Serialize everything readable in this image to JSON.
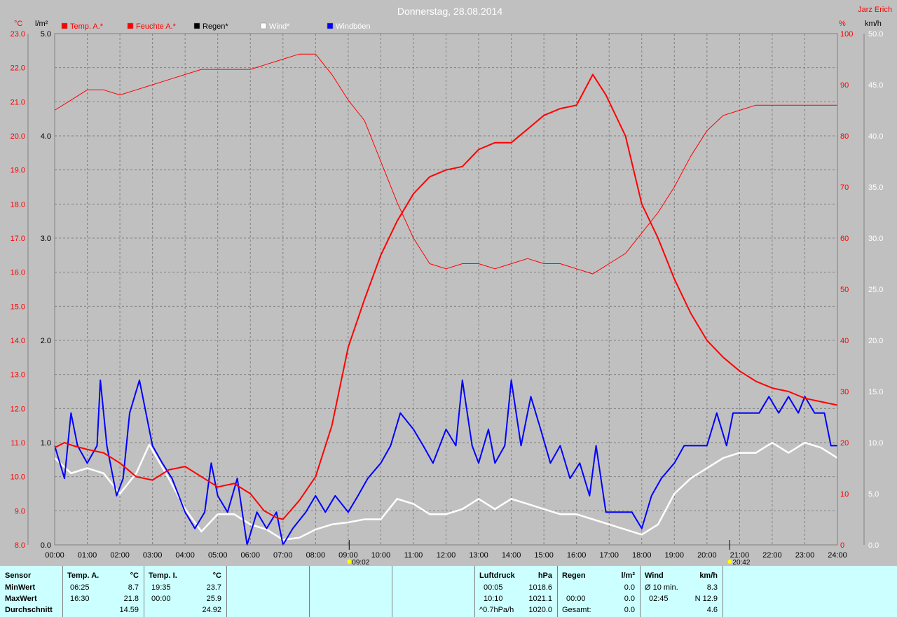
{
  "title": "Donnerstag, 28.08.2014",
  "author": "Jarz Erich",
  "colors": {
    "temp": "#ff0000",
    "humidity": "#ff0000",
    "rain": "#000000",
    "wind": "#ffffff",
    "gusts": "#0000ff",
    "plot_bg": "#c0c0c0",
    "panel_bg": "#ccffff"
  },
  "legend": [
    {
      "label": "Temp. A.*",
      "color": "#ff0000"
    },
    {
      "label": "Feuchte A.*",
      "color": "#ff0000"
    },
    {
      "label": "Regen*",
      "color": "#000000"
    },
    {
      "label": "Wind*",
      "color": "#ffffff"
    },
    {
      "label": "Windböen",
      "color": "#0000ff"
    }
  ],
  "chart_data": {
    "type": "line",
    "title": "Donnerstag, 28.08.2014",
    "x_ticks": [
      "00:00",
      "01:00",
      "02:00",
      "03:00",
      "04:00",
      "05:00",
      "06:00",
      "07:00",
      "08:00",
      "09:00",
      "10:00",
      "11:00",
      "12:00",
      "13:00",
      "14:00",
      "15:00",
      "16:00",
      "17:00",
      "18:00",
      "19:00",
      "20:00",
      "21:00",
      "22:00",
      "23:00",
      "24:00"
    ],
    "x_range_hours": [
      0,
      24
    ],
    "axes": {
      "temp": {
        "unit": "°C",
        "min": 8,
        "max": 23,
        "ticks": [
          "8.0",
          "9.0",
          "10.0",
          "11.0",
          "12.0",
          "13.0",
          "14.0",
          "15.0",
          "16.0",
          "17.0",
          "18.0",
          "19.0",
          "20.0",
          "21.0",
          "22.0",
          "23.0"
        ]
      },
      "rain": {
        "unit": "l/m²",
        "min": 0,
        "max": 5,
        "ticks": [
          "0.0",
          "1.0",
          "2.0",
          "3.0",
          "4.0",
          "5.0"
        ]
      },
      "humidity": {
        "unit": "%",
        "min": 0,
        "max": 100,
        "ticks": [
          "0",
          "10",
          "20",
          "30",
          "40",
          "50",
          "60",
          "70",
          "80",
          "90",
          "100"
        ]
      },
      "wind": {
        "unit": "km/h",
        "min": 0,
        "max": 50,
        "ticks": [
          "0.0",
          "5.0",
          "10.0",
          "15.0",
          "20.0",
          "25.0",
          "30.0",
          "35.0",
          "40.0",
          "45.0",
          "50.0"
        ]
      }
    },
    "markers": [
      {
        "hour": 9.03,
        "label": "09:02"
      },
      {
        "hour": 20.7,
        "label": "20:42"
      }
    ],
    "grid": true,
    "series": [
      {
        "name": "Temp. A.*",
        "axis": "temp",
        "points": [
          [
            0,
            10.85
          ],
          [
            0.3,
            11.0
          ],
          [
            0.6,
            10.9
          ],
          [
            1.0,
            10.8
          ],
          [
            1.5,
            10.7
          ],
          [
            2.0,
            10.4
          ],
          [
            2.5,
            10.0
          ],
          [
            3.0,
            9.9
          ],
          [
            3.5,
            10.2
          ],
          [
            4.0,
            10.3
          ],
          [
            4.5,
            10.0
          ],
          [
            5.0,
            9.7
          ],
          [
            5.5,
            9.8
          ],
          [
            6.0,
            9.5
          ],
          [
            6.42,
            9.0
          ],
          [
            6.8,
            8.8
          ],
          [
            7.0,
            8.75
          ],
          [
            7.5,
            9.3
          ],
          [
            8.0,
            10.0
          ],
          [
            8.5,
            11.5
          ],
          [
            9.0,
            13.8
          ],
          [
            9.5,
            15.2
          ],
          [
            10.0,
            16.5
          ],
          [
            10.5,
            17.5
          ],
          [
            11.0,
            18.3
          ],
          [
            11.5,
            18.8
          ],
          [
            12.0,
            19.0
          ],
          [
            12.5,
            19.1
          ],
          [
            13.0,
            19.6
          ],
          [
            13.5,
            19.8
          ],
          [
            14.0,
            19.8
          ],
          [
            14.5,
            20.2
          ],
          [
            15.0,
            20.6
          ],
          [
            15.5,
            20.8
          ],
          [
            16.0,
            20.9
          ],
          [
            16.5,
            21.8
          ],
          [
            16.9,
            21.2
          ],
          [
            17.5,
            20.0
          ],
          [
            18.0,
            18.0
          ],
          [
            18.5,
            17.0
          ],
          [
            19.0,
            15.8
          ],
          [
            19.5,
            14.8
          ],
          [
            20.0,
            14.0
          ],
          [
            20.5,
            13.5
          ],
          [
            21.0,
            13.1
          ],
          [
            21.5,
            12.8
          ],
          [
            22.0,
            12.6
          ],
          [
            22.5,
            12.5
          ],
          [
            23.0,
            12.3
          ],
          [
            23.5,
            12.2
          ],
          [
            24.0,
            12.1
          ]
        ]
      },
      {
        "name": "Feuchte A.*",
        "axis": "humidity",
        "points": [
          [
            0,
            85
          ],
          [
            0.5,
            87
          ],
          [
            1.0,
            89
          ],
          [
            1.5,
            89
          ],
          [
            2.0,
            88
          ],
          [
            2.5,
            89
          ],
          [
            3.0,
            90
          ],
          [
            3.5,
            91
          ],
          [
            4.0,
            92
          ],
          [
            4.5,
            93
          ],
          [
            5.0,
            93
          ],
          [
            5.5,
            93
          ],
          [
            6.0,
            93
          ],
          [
            6.5,
            94
          ],
          [
            7.0,
            95
          ],
          [
            7.5,
            96
          ],
          [
            8.0,
            96
          ],
          [
            8.5,
            92
          ],
          [
            9.0,
            87
          ],
          [
            9.5,
            83
          ],
          [
            10.0,
            75
          ],
          [
            10.5,
            67
          ],
          [
            11.0,
            60
          ],
          [
            11.5,
            55
          ],
          [
            12.0,
            54
          ],
          [
            12.5,
            55
          ],
          [
            13.0,
            55
          ],
          [
            13.5,
            54
          ],
          [
            14.0,
            55
          ],
          [
            14.5,
            56
          ],
          [
            15.0,
            55
          ],
          [
            15.5,
            55
          ],
          [
            16.0,
            54
          ],
          [
            16.5,
            53
          ],
          [
            17.0,
            55
          ],
          [
            17.5,
            57
          ],
          [
            18.0,
            61
          ],
          [
            18.5,
            65
          ],
          [
            19.0,
            70
          ],
          [
            19.5,
            76
          ],
          [
            20.0,
            81
          ],
          [
            20.5,
            84
          ],
          [
            21.0,
            85
          ],
          [
            21.5,
            86
          ],
          [
            22.0,
            86
          ],
          [
            22.5,
            86
          ],
          [
            23.0,
            86
          ],
          [
            23.5,
            86
          ],
          [
            24.0,
            86
          ]
        ]
      },
      {
        "name": "Wind*",
        "axis": "wind",
        "points": [
          [
            0,
            8.5
          ],
          [
            0.5,
            7.0
          ],
          [
            1.0,
            7.5
          ],
          [
            1.5,
            7.0
          ],
          [
            2.0,
            5.0
          ],
          [
            2.5,
            7.0
          ],
          [
            2.9,
            9.8
          ],
          [
            3.5,
            6.5
          ],
          [
            4.0,
            3.5
          ],
          [
            4.5,
            1.3
          ],
          [
            5.0,
            3.0
          ],
          [
            5.5,
            3.0
          ],
          [
            6.0,
            2.0
          ],
          [
            6.5,
            1.5
          ],
          [
            7.0,
            0.5
          ],
          [
            7.5,
            0.7
          ],
          [
            8.0,
            1.5
          ],
          [
            8.5,
            2.0
          ],
          [
            9.0,
            2.2
          ],
          [
            9.5,
            2.5
          ],
          [
            10.0,
            2.5
          ],
          [
            10.5,
            4.5
          ],
          [
            11.0,
            4.0
          ],
          [
            11.5,
            3.0
          ],
          [
            12.0,
            3.0
          ],
          [
            12.5,
            3.5
          ],
          [
            13.0,
            4.5
          ],
          [
            13.5,
            3.5
          ],
          [
            14.0,
            4.5
          ],
          [
            14.5,
            4.0
          ],
          [
            15.0,
            3.5
          ],
          [
            15.5,
            3.0
          ],
          [
            16.0,
            3.0
          ],
          [
            16.5,
            2.5
          ],
          [
            17.0,
            2.0
          ],
          [
            17.5,
            1.5
          ],
          [
            18.0,
            1.0
          ],
          [
            18.5,
            2.0
          ],
          [
            19.0,
            5.0
          ],
          [
            19.5,
            6.5
          ],
          [
            20.0,
            7.5
          ],
          [
            20.5,
            8.5
          ],
          [
            21.0,
            9.0
          ],
          [
            21.5,
            9.0
          ],
          [
            22.0,
            10.0
          ],
          [
            22.5,
            9.0
          ],
          [
            23.0,
            10.0
          ],
          [
            23.5,
            9.5
          ],
          [
            24.0,
            8.5
          ]
        ]
      },
      {
        "name": "Windböen",
        "axis": "wind",
        "points": [
          [
            0,
            9.7
          ],
          [
            0.3,
            6.5
          ],
          [
            0.5,
            12.9
          ],
          [
            0.7,
            9.7
          ],
          [
            1.0,
            8.0
          ],
          [
            1.3,
            9.7
          ],
          [
            1.4,
            16.1
          ],
          [
            1.6,
            9.7
          ],
          [
            1.9,
            4.8
          ],
          [
            2.1,
            6.5
          ],
          [
            2.3,
            12.9
          ],
          [
            2.6,
            16.1
          ],
          [
            2.8,
            12.9
          ],
          [
            3.0,
            9.7
          ],
          [
            3.3,
            8.0
          ],
          [
            3.6,
            6.5
          ],
          [
            4.0,
            3.2
          ],
          [
            4.3,
            1.6
          ],
          [
            4.6,
            3.2
          ],
          [
            4.8,
            8.0
          ],
          [
            5.0,
            4.8
          ],
          [
            5.3,
            3.2
          ],
          [
            5.6,
            6.5
          ],
          [
            5.9,
            0.0
          ],
          [
            6.2,
            3.2
          ],
          [
            6.5,
            1.6
          ],
          [
            6.8,
            3.2
          ],
          [
            7.0,
            0.0
          ],
          [
            7.3,
            1.6
          ],
          [
            7.7,
            3.2
          ],
          [
            8.0,
            4.8
          ],
          [
            8.3,
            3.2
          ],
          [
            8.6,
            4.8
          ],
          [
            9.0,
            3.2
          ],
          [
            9.3,
            4.8
          ],
          [
            9.6,
            6.5
          ],
          [
            10.0,
            8.0
          ],
          [
            10.3,
            9.7
          ],
          [
            10.6,
            12.9
          ],
          [
            11.0,
            11.3
          ],
          [
            11.3,
            9.7
          ],
          [
            11.6,
            8.0
          ],
          [
            12.0,
            11.3
          ],
          [
            12.3,
            9.7
          ],
          [
            12.5,
            16.1
          ],
          [
            12.8,
            9.7
          ],
          [
            13.0,
            8.0
          ],
          [
            13.3,
            11.3
          ],
          [
            13.5,
            8.0
          ],
          [
            13.8,
            9.7
          ],
          [
            14.0,
            16.1
          ],
          [
            14.3,
            9.7
          ],
          [
            14.6,
            14.5
          ],
          [
            14.9,
            11.3
          ],
          [
            15.2,
            8.0
          ],
          [
            15.5,
            9.7
          ],
          [
            15.8,
            6.5
          ],
          [
            16.1,
            8.0
          ],
          [
            16.4,
            4.8
          ],
          [
            16.6,
            9.7
          ],
          [
            16.9,
            3.2
          ],
          [
            17.3,
            3.2
          ],
          [
            17.7,
            3.2
          ],
          [
            18.0,
            1.6
          ],
          [
            18.3,
            4.8
          ],
          [
            18.6,
            6.5
          ],
          [
            19.0,
            8.0
          ],
          [
            19.3,
            9.7
          ],
          [
            19.7,
            9.7
          ],
          [
            20.0,
            9.7
          ],
          [
            20.3,
            12.9
          ],
          [
            20.6,
            9.7
          ],
          [
            20.8,
            12.9
          ],
          [
            21.2,
            12.9
          ],
          [
            21.6,
            12.9
          ],
          [
            21.9,
            14.5
          ],
          [
            22.2,
            12.9
          ],
          [
            22.5,
            14.5
          ],
          [
            22.8,
            12.9
          ],
          [
            23.0,
            14.5
          ],
          [
            23.3,
            12.9
          ],
          [
            23.6,
            12.9
          ],
          [
            23.8,
            9.7
          ],
          [
            24.0,
            9.7
          ]
        ]
      }
    ]
  },
  "stats": {
    "headers": {
      "sensor": "Sensor",
      "temp_a": "Temp. A.",
      "temp_a_unit": "°C",
      "temp_i": "Temp. I.",
      "temp_i_unit": "°C",
      "pressure": "Luftdruck",
      "pressure_unit": "hPa",
      "rain": "Regen",
      "rain_unit": "l/m²",
      "wind": "Wind",
      "wind_unit": "km/h"
    },
    "row_labels": {
      "min": "MinWert",
      "max": "MaxWert",
      "avg": "Durchschnitt"
    },
    "temp_a": {
      "min_time": "06:25",
      "min_val": "8.7",
      "max_time": "16:30",
      "max_val": "21.8",
      "avg_val": "14.59"
    },
    "temp_i": {
      "min_time": "19:35",
      "min_val": "23.7",
      "max_time": "00:00",
      "max_val": "25.9",
      "avg_val": "24.92"
    },
    "pressure": {
      "r1_label": "00:05",
      "r1_val": "1018.6",
      "r2_label": "10:10",
      "r2_val": "1021.1",
      "r3_label": "^0.7hPa/h",
      "r3_val": "1020.0"
    },
    "rain": {
      "r2_label": "00:00",
      "r2_val": "0.0",
      "r3_label": "Gesamt:",
      "r3_val": "0.0",
      "r1_val": "0.0"
    },
    "wind": {
      "r1_label": "Ø 10 min.",
      "r1_val": "8.3",
      "r2_label": "02:45",
      "r2_val": "N 12.9",
      "r3_val": "4.6"
    }
  }
}
